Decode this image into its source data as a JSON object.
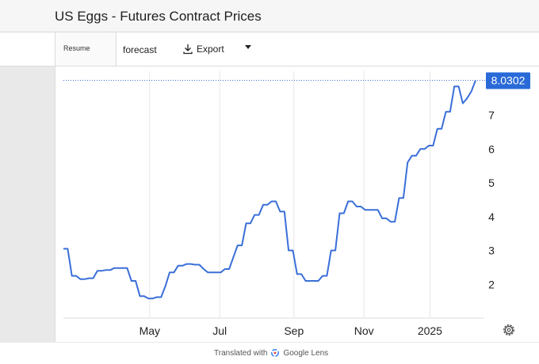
{
  "page": {
    "title": "US Eggs - Futures Contract Prices"
  },
  "toolbar": {
    "resume_label": "Resume",
    "forecast_label": "forecast",
    "export_label": "Export"
  },
  "footer": {
    "text": "Translated with",
    "brand": "Google Lens"
  },
  "colors": {
    "line": "#3a6fd8",
    "badge": "#2a6ad8",
    "grid": "#e6e6e6"
  },
  "chart_data": {
    "type": "line",
    "title": "US Eggs - Futures Contract Prices",
    "x_tick_labels": [
      "May",
      "Jul",
      "Sep",
      "Nov",
      "2025"
    ],
    "y_tick_labels": [
      "2",
      "3",
      "4",
      "5",
      "6",
      "7"
    ],
    "ylim": [
      1.0,
      8.3
    ],
    "last_value_label": "8.0302",
    "grid": "vertical",
    "series": [
      {
        "values": [
          3.05,
          3.05,
          2.25,
          2.25,
          2.15,
          2.15,
          2.18,
          2.18,
          2.4,
          2.4,
          2.42,
          2.42,
          2.48,
          2.48,
          2.48,
          2.48,
          2.1,
          2.1,
          1.65,
          1.65,
          1.58,
          1.58,
          1.62,
          1.62,
          1.95,
          2.35,
          2.35,
          2.55,
          2.55,
          2.6,
          2.6,
          2.58,
          2.58,
          2.45,
          2.35,
          2.35,
          2.35,
          2.35,
          2.45,
          2.45,
          2.8,
          3.15,
          3.15,
          3.8,
          3.8,
          4.05,
          4.05,
          4.35,
          4.35,
          4.45,
          4.45,
          4.15,
          4.15,
          3.0,
          3.0,
          2.3,
          2.3,
          2.1,
          2.1,
          2.1,
          2.1,
          2.25,
          2.25,
          3.0,
          3.0,
          4.1,
          4.1,
          4.45,
          4.45,
          4.3,
          4.3,
          4.2,
          4.2,
          4.2,
          4.2,
          3.95,
          3.95,
          3.85,
          3.85,
          4.55,
          4.55,
          5.6,
          5.8,
          5.8,
          6.0,
          6.0,
          6.1,
          6.1,
          6.6,
          6.6,
          7.1,
          7.1,
          7.85,
          7.85,
          7.35,
          7.5,
          7.7,
          8.03
        ]
      }
    ]
  }
}
